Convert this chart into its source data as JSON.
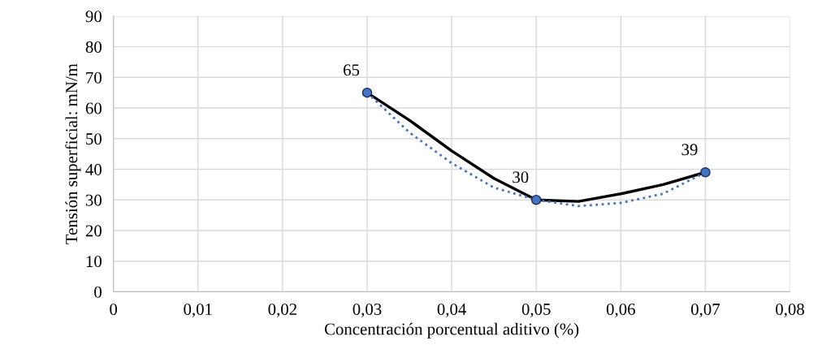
{
  "chart_data": {
    "type": "line",
    "xlabel": "Concentración porcentual aditivo (%)",
    "ylabel": "Tensión superficial: mN/m",
    "xlim": [
      0,
      0.08
    ],
    "xticks": [
      0,
      {
        "value": 0.01,
        "label": "0,01"
      },
      {
        "value": 0.02,
        "label": "0,02"
      },
      {
        "value": 0.03,
        "label": "0,03"
      },
      {
        "value": 0.04,
        "label": "0,04"
      },
      {
        "value": 0.05,
        "label": "0,05"
      },
      {
        "value": 0.06,
        "label": "0,06"
      },
      {
        "value": 0.07,
        "label": "0,07"
      },
      {
        "value": 0.08,
        "label": "0,08"
      }
    ],
    "ylim": [
      0,
      90
    ],
    "yticks": [
      0,
      10,
      20,
      30,
      40,
      50,
      60,
      70,
      80,
      90
    ],
    "grid": true,
    "series": [
      {
        "type": "line",
        "color": "#000000",
        "line_style": "solid",
        "x": [
          0.03,
          0.035,
          0.04,
          0.045,
          0.05,
          0.055,
          0.06,
          0.065,
          0.07
        ],
        "values": [
          65,
          56,
          46,
          37,
          30,
          29.5,
          32,
          35,
          39
        ]
      },
      {
        "type": "line",
        "color": "#4472c4",
        "line_style": "dotted",
        "x": [
          0.03,
          0.035,
          0.04,
          0.045,
          0.05,
          0.055,
          0.06,
          0.065,
          0.07
        ],
        "values": [
          65,
          52,
          42,
          34,
          30,
          28,
          29,
          32,
          39
        ]
      },
      {
        "type": "scatter",
        "color": "#4472c4",
        "marker": "circle",
        "data_labels": true,
        "x": [
          0.03,
          0.05,
          0.07
        ],
        "values": [
          65,
          30,
          39
        ]
      }
    ]
  }
}
